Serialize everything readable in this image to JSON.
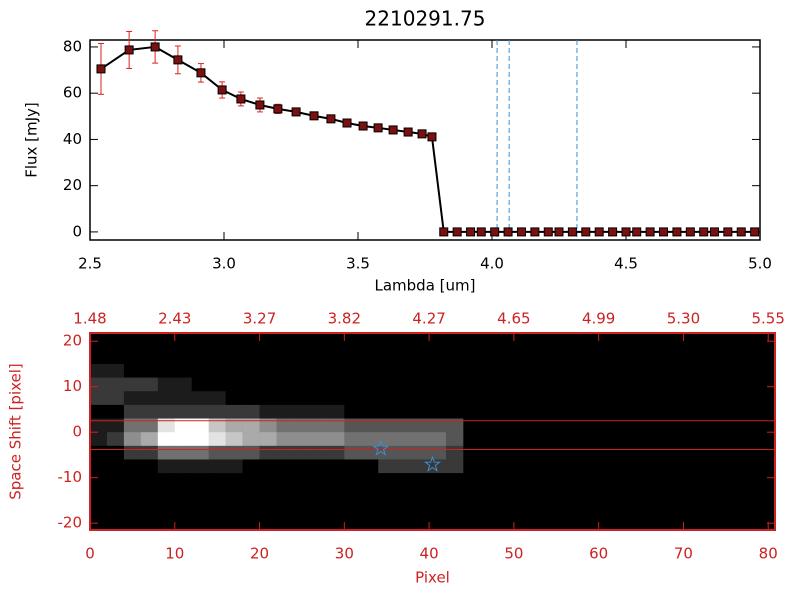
{
  "chart_data": [
    {
      "type": "line",
      "title": "2210291.75",
      "xlabel": "Lambda [um]",
      "ylabel": "Flux [mJy]",
      "xlim": [
        2.5,
        5.0
      ],
      "ylim": [
        -3.5,
        83
      ],
      "xticks": [
        2.5,
        {
          "value": 3,
          "label": "3.0"
        },
        3.5,
        {
          "value": 4,
          "label": "4.0"
        },
        4.5,
        {
          "value": 5,
          "label": "5.0"
        }
      ],
      "yticks": [
        0,
        20,
        40,
        60,
        80
      ],
      "color": "#000000",
      "marker_color": "#7a1010",
      "error_color": "#dd2222",
      "x": [
        2.541,
        2.646,
        2.743,
        2.828,
        2.914,
        2.993,
        3.063,
        3.134,
        3.201,
        3.269,
        3.336,
        3.399,
        3.459,
        3.519,
        3.575,
        3.631,
        3.687,
        3.739,
        3.776,
        3.82,
        3.87,
        3.92,
        3.96,
        4.01,
        4.06,
        4.11,
        4.16,
        4.21,
        4.25,
        4.3,
        4.35,
        4.4,
        4.45,
        4.5,
        4.54,
        4.59,
        4.64,
        4.69,
        4.74,
        4.79,
        4.83,
        4.88,
        4.93,
        4.98
      ],
      "values": [
        70.5,
        78.7,
        80,
        74.4,
        68.8,
        61.4,
        57.5,
        54.9,
        53.2,
        51.9,
        50.2,
        48.9,
        47.1,
        45.8,
        45,
        44.1,
        43.2,
        42.4,
        41.1,
        0,
        0,
        0,
        0,
        0,
        0,
        0,
        0,
        0,
        0,
        0,
        0,
        0,
        0,
        0,
        0,
        0,
        0,
        0,
        0,
        0,
        0,
        0,
        0,
        0
      ],
      "errors": [
        11,
        8,
        7,
        6,
        4,
        3.5,
        3,
        3,
        2,
        1.5,
        1.5,
        1.2,
        1.2,
        1,
        1,
        1,
        1,
        1,
        1,
        0.5,
        0.5,
        0.5,
        0.5,
        0.5,
        0.5,
        0.5,
        0.5,
        0.5,
        0.5,
        0.5,
        0.5,
        0.5,
        0.5,
        0.5,
        0.5,
        0.5,
        0.5,
        0.5,
        0.5,
        0.5,
        0.5,
        0.5,
        0.5,
        0.5
      ],
      "vlines": {
        "values": [
          4.019,
          4.064,
          4.317
        ],
        "color": "#3a8fd0"
      }
    },
    {
      "type": "heatmap",
      "xlabel": "Pixel",
      "ylabel": "Space Shift [pixel]",
      "axis_color": "#cc2222",
      "xlim": [
        0,
        80.8
      ],
      "ylim": [
        -21.5,
        21.8
      ],
      "xticks": [
        0,
        10,
        20,
        30,
        40,
        50,
        60,
        70,
        80
      ],
      "yticks": [
        -20,
        -10,
        0,
        10,
        20
      ],
      "x2ticks": [
        {
          "value": 0,
          "label": "1.48"
        },
        {
          "value": 10,
          "label": "2.43"
        },
        {
          "value": 20,
          "label": "3.27"
        },
        {
          "value": 30,
          "label": "3.82"
        },
        {
          "value": 40,
          "label": "4.27"
        },
        {
          "value": 50,
          "label": "4.65"
        },
        {
          "value": 60,
          "label": "4.99"
        },
        {
          "value": 70,
          "label": "5.30"
        },
        {
          "value": 80,
          "label": "5.55"
        }
      ],
      "zlim": [
        0,
        9
      ],
      "x_edges": [
        0,
        2,
        4,
        6,
        8,
        10,
        12,
        14,
        16,
        18,
        20,
        22,
        24,
        26,
        28,
        30,
        32,
        34,
        36,
        38,
        40,
        42,
        44
      ],
      "y_edges": [
        15,
        12,
        9,
        6,
        3,
        0,
        -3,
        -6,
        -9,
        -12
      ],
      "values": [
        [
          1,
          1,
          0,
          0,
          0,
          0,
          0,
          0,
          0,
          0,
          0,
          0,
          0,
          0,
          0,
          0,
          0,
          0,
          0,
          0,
          0,
          0
        ],
        [
          2,
          2,
          2,
          2,
          1,
          1,
          0,
          0,
          0,
          0,
          0,
          0,
          0,
          0,
          0,
          0,
          0,
          0,
          0,
          0,
          0,
          0
        ],
        [
          2,
          2,
          1,
          1,
          1,
          1,
          1,
          1,
          0,
          0,
          0,
          0,
          0,
          0,
          0,
          0,
          0,
          0,
          0,
          0,
          0,
          0
        ],
        [
          0,
          0,
          2,
          2,
          2,
          2,
          2,
          2,
          2,
          2,
          1,
          1,
          1,
          1,
          1,
          0,
          0,
          0,
          0,
          0,
          0,
          0
        ],
        [
          1,
          1,
          4,
          4,
          8,
          9,
          9,
          7,
          6,
          6,
          5,
          4,
          4,
          4,
          4,
          3,
          3,
          3,
          3,
          3,
          3,
          3
        ],
        [
          1,
          2,
          5,
          6,
          9,
          9,
          9,
          8,
          7,
          6,
          6,
          5,
          5,
          5,
          5,
          4,
          4,
          4,
          4,
          4,
          4,
          3
        ],
        [
          0,
          0,
          2,
          2,
          4,
          4,
          4,
          3,
          3,
          3,
          2,
          2,
          2,
          2,
          2,
          3,
          3,
          3,
          3,
          3,
          3,
          2
        ],
        [
          0,
          0,
          0,
          0,
          1,
          1,
          1,
          1,
          1,
          0,
          0,
          0,
          0,
          0,
          0,
          0,
          0,
          2,
          2,
          2,
          2,
          2
        ],
        [
          0,
          0,
          0,
          0,
          0,
          0,
          0,
          0,
          0,
          0,
          0,
          0,
          0,
          0,
          0,
          0,
          0,
          0,
          0,
          0,
          0,
          0
        ]
      ],
      "hlines": [
        2.5,
        -3.8
      ],
      "stars": {
        "x": [
          34.3,
          40.4
        ],
        "y": [
          -3.6,
          -7.1
        ],
        "color": "#3a8fd0"
      }
    }
  ]
}
